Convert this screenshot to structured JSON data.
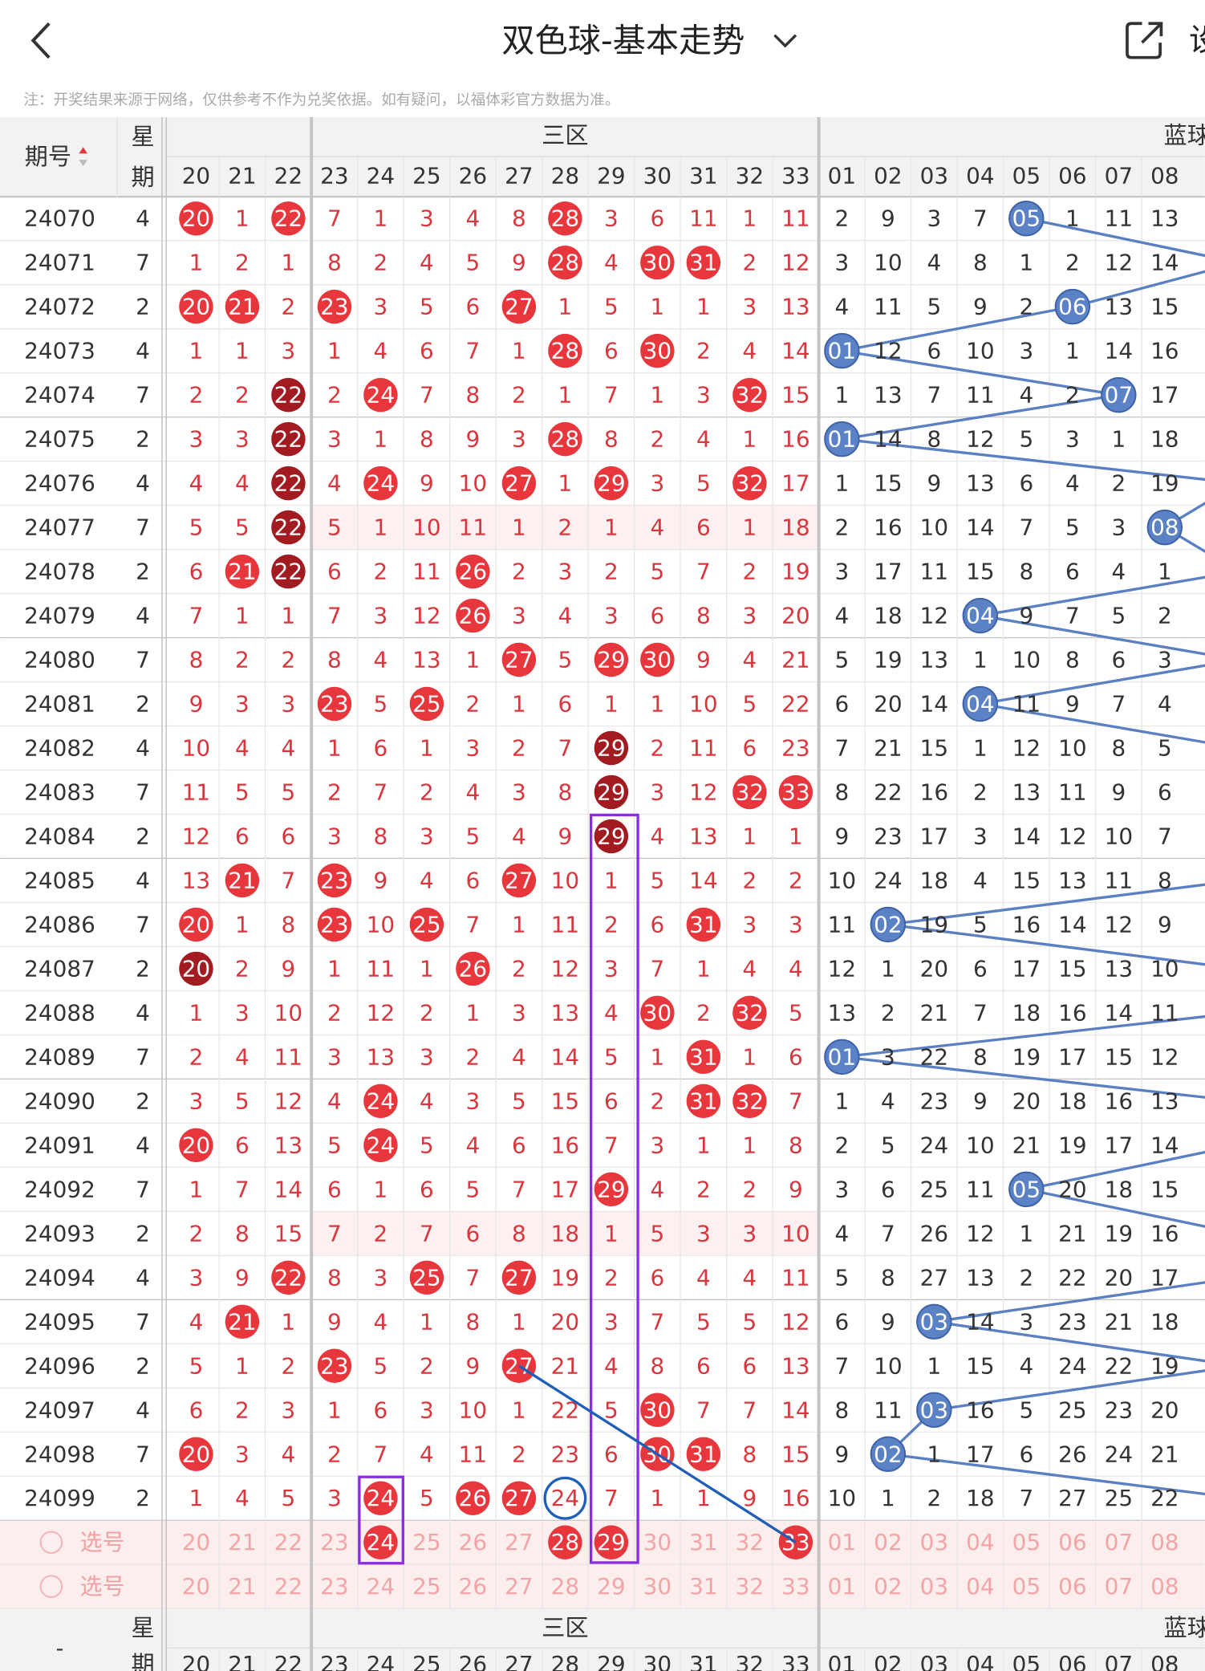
{
  "header": {
    "title": "双色球-基本走势",
    "action_partial": "设"
  },
  "note": "注：开奖结果来源于网络，仅供参考不作为兑奖依据。如有疑问，以福体彩官方数据为准。",
  "table": {
    "columns": {
      "issue": "期号",
      "weekday": [
        "星",
        "期"
      ],
      "red_zone": "三区",
      "blue_zone": "蓝球",
      "red_numbers": [
        20,
        21,
        22,
        23,
        24,
        25,
        26,
        27,
        28,
        29,
        30,
        31,
        32,
        33
      ],
      "blue_numbers": [
        "01",
        "02",
        "03",
        "04",
        "05",
        "06",
        "07",
        "08"
      ]
    },
    "rows": [
      {
        "issue": 24070,
        "weekday": 4,
        "red": [
          {
            "value": 20,
            "mark": "hit"
          },
          1,
          {
            "value": 22,
            "mark": "hit"
          },
          7,
          1,
          3,
          4,
          8,
          {
            "value": 28,
            "mark": "hit"
          },
          3,
          6,
          11,
          1,
          11
        ],
        "blue": [
          2,
          9,
          3,
          7,
          {
            "value": "05",
            "mark": "hit"
          },
          1,
          11,
          13
        ]
      },
      {
        "issue": 24071,
        "weekday": 7,
        "red": [
          1,
          2,
          1,
          8,
          2,
          4,
          5,
          9,
          {
            "value": 28,
            "mark": "hit"
          },
          4,
          {
            "value": 30,
            "mark": "hit"
          },
          {
            "value": 31,
            "mark": "hit"
          },
          2,
          12
        ],
        "blue": [
          3,
          10,
          4,
          8,
          1,
          2,
          12,
          14
        ]
      },
      {
        "issue": 24072,
        "weekday": 2,
        "red": [
          {
            "value": 20,
            "mark": "hit"
          },
          {
            "value": 21,
            "mark": "hit"
          },
          2,
          {
            "value": 23,
            "mark": "hit"
          },
          3,
          5,
          6,
          {
            "value": 27,
            "mark": "hit"
          },
          1,
          5,
          1,
          1,
          3,
          13
        ],
        "blue": [
          4,
          11,
          5,
          9,
          2,
          {
            "value": "06",
            "mark": "hit"
          },
          13,
          15
        ]
      },
      {
        "issue": 24073,
        "weekday": 4,
        "red": [
          1,
          1,
          3,
          1,
          4,
          6,
          7,
          1,
          {
            "value": 28,
            "mark": "hit"
          },
          6,
          {
            "value": 30,
            "mark": "hit"
          },
          2,
          4,
          14
        ],
        "blue": [
          {
            "value": "01",
            "mark": "hit"
          },
          12,
          6,
          10,
          3,
          1,
          14,
          16
        ]
      },
      {
        "issue": 24074,
        "weekday": 7,
        "red": [
          2,
          2,
          {
            "value": 22,
            "mark": "repeat"
          },
          2,
          {
            "value": 24,
            "mark": "hit"
          },
          7,
          8,
          2,
          1,
          7,
          1,
          3,
          {
            "value": 32,
            "mark": "hit"
          },
          15
        ],
        "blue": [
          1,
          13,
          7,
          11,
          4,
          2,
          {
            "value": "07",
            "mark": "hit"
          },
          17
        ]
      },
      {
        "issue": 24075,
        "weekday": 2,
        "red": [
          3,
          3,
          {
            "value": 22,
            "mark": "repeat"
          },
          3,
          1,
          8,
          9,
          3,
          {
            "value": 28,
            "mark": "hit"
          },
          8,
          2,
          4,
          1,
          16
        ],
        "blue": [
          {
            "value": "01",
            "mark": "hit"
          },
          14,
          8,
          12,
          5,
          3,
          1,
          18
        ]
      },
      {
        "issue": 24076,
        "weekday": 4,
        "red": [
          4,
          4,
          {
            "value": 22,
            "mark": "repeat"
          },
          4,
          {
            "value": 24,
            "mark": "hit"
          },
          9,
          10,
          {
            "value": 27,
            "mark": "hit"
          },
          1,
          {
            "value": 29,
            "mark": "hit"
          },
          3,
          5,
          {
            "value": 32,
            "mark": "hit"
          },
          17
        ],
        "blue": [
          1,
          15,
          9,
          13,
          6,
          4,
          2,
          19
        ]
      },
      {
        "issue": 24077,
        "weekday": 7,
        "red": [
          5,
          5,
          {
            "value": 22,
            "mark": "repeat"
          },
          5,
          1,
          10,
          11,
          1,
          2,
          1,
          4,
          6,
          1,
          18
        ],
        "blue": [
          2,
          16,
          10,
          14,
          7,
          5,
          3,
          {
            "value": "08",
            "mark": "hit"
          }
        ]
      },
      {
        "issue": 24078,
        "weekday": 2,
        "red": [
          6,
          {
            "value": 21,
            "mark": "hit"
          },
          {
            "value": 22,
            "mark": "repeat"
          },
          6,
          2,
          11,
          {
            "value": 26,
            "mark": "hit"
          },
          2,
          3,
          2,
          5,
          7,
          2,
          19
        ],
        "blue": [
          3,
          17,
          11,
          15,
          8,
          6,
          4,
          1
        ]
      },
      {
        "issue": 24079,
        "weekday": 4,
        "red": [
          7,
          1,
          1,
          7,
          3,
          12,
          {
            "value": 26,
            "mark": "hit"
          },
          3,
          4,
          3,
          6,
          8,
          3,
          20
        ],
        "blue": [
          4,
          18,
          12,
          {
            "value": "04",
            "mark": "hit"
          },
          9,
          7,
          5,
          2
        ]
      },
      {
        "issue": 24080,
        "weekday": 7,
        "red": [
          8,
          2,
          2,
          8,
          4,
          13,
          1,
          {
            "value": 27,
            "mark": "hit"
          },
          5,
          {
            "value": 29,
            "mark": "hit"
          },
          {
            "value": 30,
            "mark": "hit"
          },
          9,
          4,
          21
        ],
        "blue": [
          5,
          19,
          13,
          1,
          10,
          8,
          6,
          3
        ]
      },
      {
        "issue": 24081,
        "weekday": 2,
        "red": [
          9,
          3,
          3,
          {
            "value": 23,
            "mark": "hit"
          },
          5,
          {
            "value": 25,
            "mark": "hit"
          },
          2,
          1,
          6,
          1,
          1,
          10,
          5,
          22
        ],
        "blue": [
          6,
          20,
          14,
          {
            "value": "04",
            "mark": "hit"
          },
          11,
          9,
          7,
          4
        ]
      },
      {
        "issue": 24082,
        "weekday": 4,
        "red": [
          10,
          4,
          4,
          1,
          6,
          1,
          3,
          2,
          7,
          {
            "value": 29,
            "mark": "repeat"
          },
          2,
          11,
          6,
          23
        ],
        "blue": [
          7,
          21,
          15,
          1,
          12,
          10,
          8,
          5
        ]
      },
      {
        "issue": 24083,
        "weekday": 7,
        "red": [
          11,
          5,
          5,
          2,
          7,
          2,
          4,
          3,
          8,
          {
            "value": 29,
            "mark": "repeat"
          },
          3,
          12,
          {
            "value": 32,
            "mark": "hit"
          },
          {
            "value": 33,
            "mark": "hit"
          }
        ],
        "blue": [
          8,
          22,
          16,
          2,
          13,
          11,
          9,
          6
        ]
      },
      {
        "issue": 24084,
        "weekday": 2,
        "red": [
          12,
          6,
          6,
          3,
          8,
          3,
          5,
          4,
          9,
          {
            "value": 29,
            "mark": "repeat"
          },
          4,
          13,
          1,
          1
        ],
        "blue": [
          9,
          23,
          17,
          3,
          14,
          12,
          10,
          7
        ]
      },
      {
        "issue": 24085,
        "weekday": 4,
        "red": [
          13,
          {
            "value": 21,
            "mark": "hit"
          },
          7,
          {
            "value": 23,
            "mark": "hit"
          },
          9,
          4,
          6,
          {
            "value": 27,
            "mark": "hit"
          },
          10,
          1,
          5,
          14,
          2,
          2
        ],
        "blue": [
          10,
          24,
          18,
          4,
          15,
          13,
          11,
          8
        ]
      },
      {
        "issue": 24086,
        "weekday": 7,
        "red": [
          {
            "value": 20,
            "mark": "hit"
          },
          1,
          8,
          {
            "value": 23,
            "mark": "hit"
          },
          10,
          {
            "value": 25,
            "mark": "hit"
          },
          7,
          1,
          11,
          2,
          6,
          {
            "value": 31,
            "mark": "hit"
          },
          3,
          3
        ],
        "blue": [
          11,
          {
            "value": "02",
            "mark": "hit"
          },
          19,
          5,
          16,
          14,
          12,
          9
        ]
      },
      {
        "issue": 24087,
        "weekday": 2,
        "red": [
          {
            "value": 20,
            "mark": "repeat"
          },
          2,
          9,
          1,
          11,
          1,
          {
            "value": 26,
            "mark": "hit"
          },
          2,
          12,
          3,
          7,
          1,
          4,
          4
        ],
        "blue": [
          12,
          1,
          20,
          6,
          17,
          15,
          13,
          10
        ]
      },
      {
        "issue": 24088,
        "weekday": 4,
        "red": [
          1,
          3,
          10,
          2,
          12,
          2,
          1,
          3,
          13,
          4,
          {
            "value": 30,
            "mark": "hit"
          },
          2,
          {
            "value": 32,
            "mark": "hit"
          },
          5
        ],
        "blue": [
          13,
          2,
          21,
          7,
          18,
          16,
          14,
          11
        ]
      },
      {
        "issue": 24089,
        "weekday": 7,
        "red": [
          2,
          4,
          11,
          3,
          13,
          3,
          2,
          4,
          14,
          5,
          1,
          {
            "value": 31,
            "mark": "hit"
          },
          1,
          6
        ],
        "blue": [
          {
            "value": "01",
            "mark": "hit"
          },
          3,
          22,
          8,
          19,
          17,
          15,
          12
        ]
      },
      {
        "issue": 24090,
        "weekday": 2,
        "red": [
          3,
          5,
          12,
          4,
          {
            "value": 24,
            "mark": "hit"
          },
          4,
          3,
          5,
          15,
          6,
          2,
          {
            "value": 31,
            "mark": "hit"
          },
          {
            "value": 32,
            "mark": "hit"
          },
          7
        ],
        "blue": [
          1,
          4,
          23,
          9,
          20,
          18,
          16,
          13
        ]
      },
      {
        "issue": 24091,
        "weekday": 4,
        "red": [
          {
            "value": 20,
            "mark": "hit"
          },
          6,
          13,
          5,
          {
            "value": 24,
            "mark": "hit"
          },
          5,
          4,
          6,
          16,
          7,
          3,
          1,
          1,
          8
        ],
        "blue": [
          2,
          5,
          24,
          10,
          21,
          19,
          17,
          14
        ]
      },
      {
        "issue": 24092,
        "weekday": 7,
        "red": [
          1,
          7,
          14,
          6,
          1,
          6,
          5,
          7,
          17,
          {
            "value": 29,
            "mark": "hit"
          },
          4,
          2,
          2,
          9
        ],
        "blue": [
          3,
          6,
          25,
          11,
          {
            "value": "05",
            "mark": "hit"
          },
          20,
          18,
          15
        ]
      },
      {
        "issue": 24093,
        "weekday": 2,
        "red": [
          2,
          8,
          15,
          7,
          2,
          7,
          6,
          8,
          18,
          1,
          5,
          3,
          3,
          10
        ],
        "blue": [
          4,
          7,
          26,
          12,
          1,
          21,
          19,
          16
        ]
      },
      {
        "issue": 24094,
        "weekday": 4,
        "red": [
          3,
          9,
          {
            "value": 22,
            "mark": "hit"
          },
          8,
          3,
          {
            "value": 25,
            "mark": "hit"
          },
          7,
          {
            "value": 27,
            "mark": "hit"
          },
          19,
          2,
          6,
          4,
          4,
          11
        ],
        "blue": [
          5,
          8,
          27,
          13,
          2,
          22,
          20,
          17
        ]
      },
      {
        "issue": 24095,
        "weekday": 7,
        "red": [
          4,
          {
            "value": 21,
            "mark": "hit"
          },
          1,
          9,
          4,
          1,
          8,
          1,
          20,
          3,
          7,
          5,
          5,
          12
        ],
        "blue": [
          6,
          9,
          {
            "value": "03",
            "mark": "hit"
          },
          14,
          3,
          23,
          21,
          18
        ]
      },
      {
        "issue": 24096,
        "weekday": 2,
        "red": [
          5,
          1,
          2,
          {
            "value": 23,
            "mark": "hit"
          },
          5,
          2,
          9,
          {
            "value": 27,
            "mark": "hit"
          },
          21,
          4,
          8,
          6,
          6,
          13
        ],
        "blue": [
          7,
          10,
          1,
          15,
          4,
          24,
          22,
          19
        ]
      },
      {
        "issue": 24097,
        "weekday": 4,
        "red": [
          6,
          2,
          3,
          1,
          6,
          3,
          10,
          1,
          22,
          5,
          {
            "value": 30,
            "mark": "hit"
          },
          7,
          7,
          14
        ],
        "blue": [
          8,
          11,
          {
            "value": "03",
            "mark": "hit"
          },
          16,
          5,
          25,
          23,
          20
        ]
      },
      {
        "issue": 24098,
        "weekday": 7,
        "red": [
          {
            "value": 20,
            "mark": "hit"
          },
          3,
          4,
          2,
          7,
          4,
          11,
          2,
          23,
          6,
          {
            "value": 30,
            "mark": "hit"
          },
          {
            "value": 31,
            "mark": "hit"
          },
          8,
          15
        ],
        "blue": [
          9,
          {
            "value": "02",
            "mark": "hit"
          },
          1,
          17,
          6,
          26,
          24,
          21
        ]
      },
      {
        "issue": 24099,
        "weekday": 2,
        "red": [
          1,
          4,
          5,
          3,
          {
            "value": 24,
            "mark": "hit"
          },
          5,
          {
            "value": 26,
            "mark": "hit"
          },
          {
            "value": 27,
            "mark": "hit"
          },
          24,
          7,
          1,
          1,
          9,
          16
        ],
        "blue": [
          10,
          1,
          2,
          18,
          7,
          27,
          25,
          22
        ]
      }
    ],
    "selections": [
      {
        "label": "选号",
        "red": [
          20,
          21,
          22,
          23,
          {
            "value": 24,
            "mark": "hit"
          },
          25,
          26,
          27,
          {
            "value": 28,
            "mark": "hit"
          },
          {
            "value": 29,
            "mark": "hit"
          },
          30,
          31,
          32,
          {
            "value": 33,
            "mark": "hit"
          }
        ],
        "blue": [
          "01",
          "02",
          "03",
          "04",
          "05",
          "06",
          "07",
          "08"
        ]
      },
      {
        "label": "选号",
        "red": [
          20,
          21,
          22,
          23,
          24,
          25,
          26,
          27,
          28,
          29,
          30,
          31,
          32,
          33
        ],
        "blue": [
          "01",
          "02",
          "03",
          "04",
          "05",
          "06",
          "07",
          "08"
        ]
      }
    ],
    "footer_header": {
      "issue": "-"
    }
  }
}
